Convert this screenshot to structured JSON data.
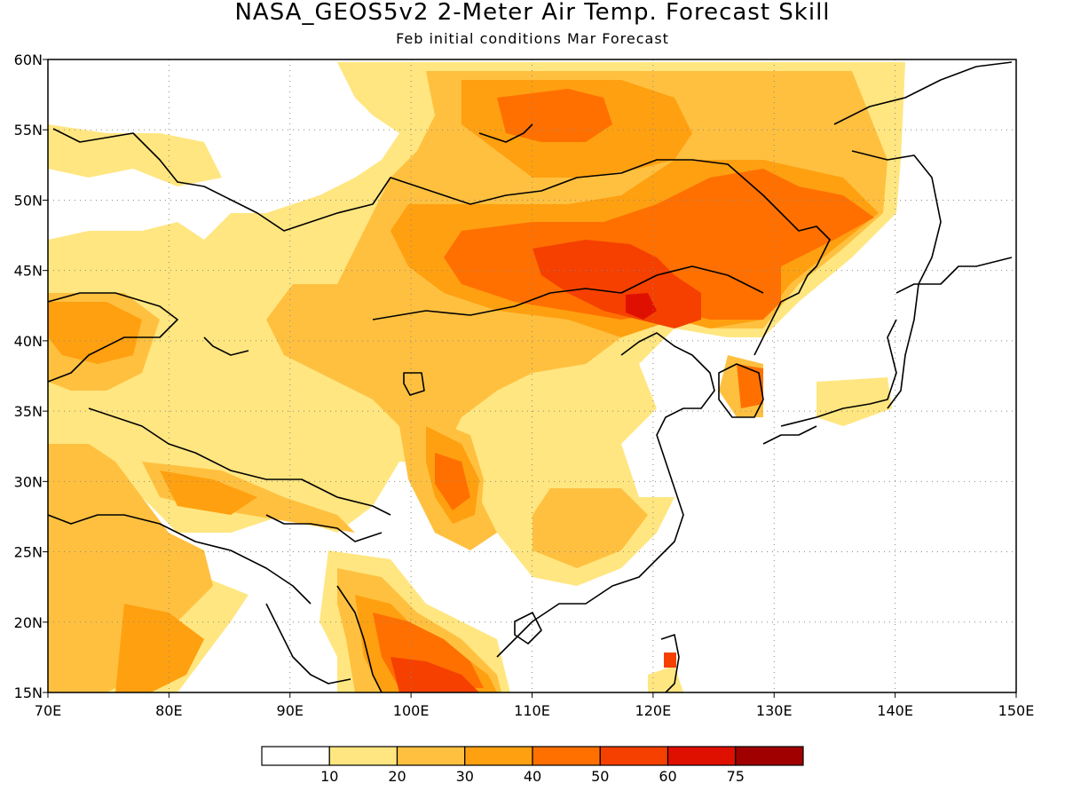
{
  "title": "NASA_GEOS5v2 2-Meter Air Temp. Forecast Skill",
  "subtitle": "Feb initial conditions  Mar Forecast",
  "lon_labels": [
    "70E",
    "80E",
    "90E",
    "100E",
    "110E",
    "120E",
    "130E",
    "140E",
    "150E"
  ],
  "lat_labels": [
    "15N",
    "20N",
    "25N",
    "30N",
    "35N",
    "40N",
    "45N",
    "50N",
    "55N",
    "60N"
  ],
  "colorbar": {
    "tick_labels": [
      "10",
      "20",
      "30",
      "40",
      "50",
      "60",
      "75"
    ],
    "colors": [
      "#ffffff",
      "#ffe680",
      "#ffc040",
      "#ffa010",
      "#ff7000",
      "#f54000",
      "#e01000",
      "#a00000"
    ]
  },
  "map_data": {
    "lon_range": [
      70,
      150
    ],
    "lat_range": [
      15,
      60
    ],
    "variable": "2-Meter Air Temp. Forecast Skill",
    "skill_regions": [
      {
        "level_min": 10,
        "description": "Siberia, Mongolia, N China band"
      },
      {
        "level_min": 40,
        "description": "Mongolia / N China core"
      },
      {
        "level_min": 50,
        "description": "Inner Mongolia max"
      },
      {
        "level_min": 60,
        "description": "N China small max near 119E 42N"
      }
    ]
  }
}
